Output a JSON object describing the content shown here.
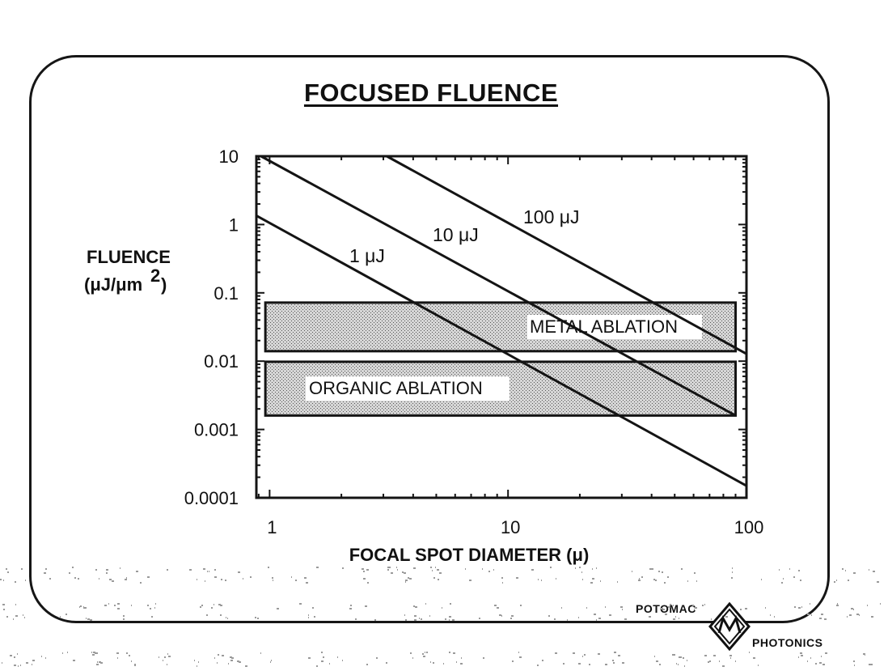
{
  "slide": {
    "title": "FOCUSED FLUENCE",
    "logo": {
      "top_text": "POTOMAC",
      "bottom_text": "PHOTONICS",
      "mark_icon": "diamond-m-icon"
    }
  },
  "chart_data": {
    "type": "line",
    "title": "FOCUSED FLUENCE",
    "xlabel": "FOCAL SPOT DIAMETER (μ)",
    "ylabel": [
      "FLUENCE",
      "(μJ/μm",
      "2",
      ")"
    ],
    "xscale": "log",
    "yscale": "log",
    "xlim": [
      0.88,
      100
    ],
    "ylim": [
      0.0001,
      10
    ],
    "x_tick_labels": [
      "1",
      "10",
      "100"
    ],
    "x_ticks": [
      1,
      10,
      100
    ],
    "y_tick_labels": [
      "10",
      "1",
      "0.1",
      "0.01",
      "0.001",
      "0.0001"
    ],
    "y_ticks": [
      10,
      1,
      0.1,
      0.01,
      0.001,
      0.0001
    ],
    "series": [
      {
        "name": "1 μJ",
        "x": [
          0.88,
          100
        ],
        "y": [
          1.35,
          0.00015
        ]
      },
      {
        "name": "10 μJ",
        "x": [
          0.92,
          90
        ],
        "y": [
          10,
          0.0016
        ]
      },
      {
        "name": "100 μJ",
        "x": [
          3.1,
          100
        ],
        "y": [
          10,
          0.0128
        ]
      }
    ],
    "bands": [
      {
        "name": "METAL ABLATION",
        "x": [
          0.96,
          90
        ],
        "y": [
          0.014,
          0.072
        ]
      },
      {
        "name": "ORGANIC ABLATION",
        "x": [
          0.96,
          90
        ],
        "y": [
          0.0016,
          0.0098
        ]
      }
    ],
    "colors": {
      "line": "#141414",
      "band_fill": "#bdbdbd",
      "label_bg": "#ffffff"
    }
  }
}
